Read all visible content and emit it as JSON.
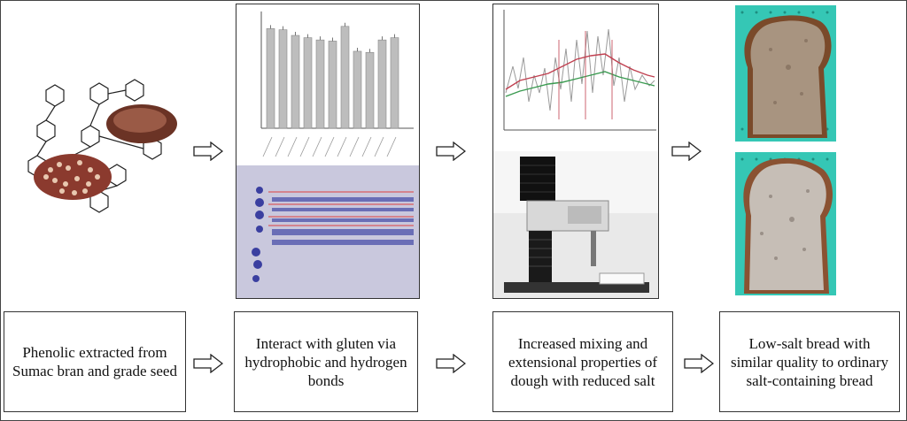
{
  "captions": [
    "Phenolic extracted from Sumac bran and grade seed",
    "Interact with gluten via hydrophobic and hydrogen bonds",
    "Increased mixing and extensional properties of dough with reduced salt",
    "Low-salt bread with similar quality to ordinary salt-containing bread"
  ],
  "bar_chart": {
    "values": [
      88,
      87,
      82,
      80,
      78,
      77,
      90,
      68,
      67,
      78,
      80
    ],
    "ylim": [
      0,
      100
    ]
  },
  "colors": {
    "border": "#333333",
    "bar": "#bdbdbd",
    "gel_bg": "#c9c8dd",
    "gel_band": "#4a4fa8",
    "bread_bg": "#35c7b5",
    "crumb": "#c8b9a8",
    "crust": "#7a4a2a"
  }
}
